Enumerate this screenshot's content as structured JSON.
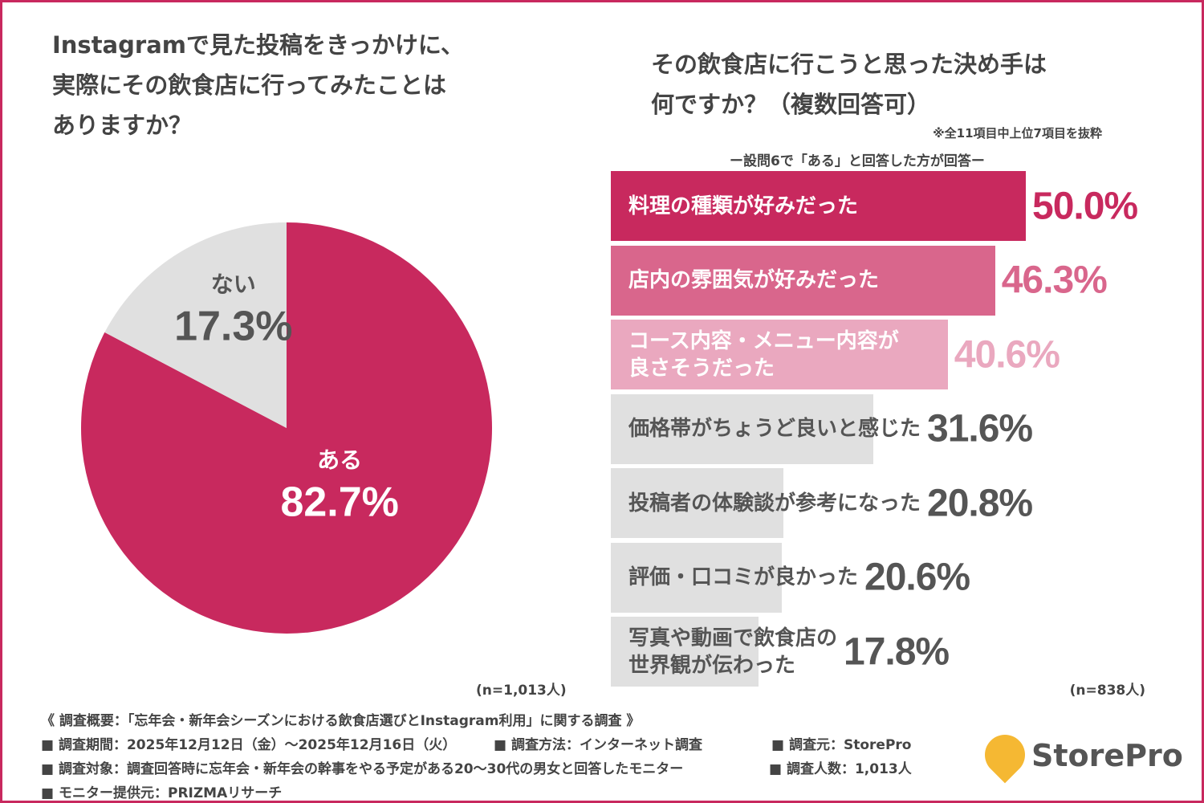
{
  "chart_data": [
    {
      "type": "pie",
      "title": "Instagramで見た投稿をきっかけに、\n実際にその飲食店に行ってみたことは\nありますか？",
      "categories": [
        "ある",
        "ない"
      ],
      "values": [
        82.7,
        17.3
      ],
      "value_labels": [
        "82.7%",
        "17.3%"
      ],
      "colors": [
        "#c8295e",
        "#e0e0e0"
      ],
      "label_colors": [
        "#ffffff",
        "#555555"
      ],
      "note": "(n=1,013人)"
    },
    {
      "type": "hbar",
      "title": "その飲食店に行こうと思った決め手は\n何ですか？（複数回答可）",
      "annotation": "※全11項目中上位7項目を抜粋",
      "subtitle": "ー設問6で「ある」と回答した方が回答ー",
      "categories": [
        "料理の種類が好みだった",
        "店内の雰囲気が好みだった",
        "コース内容・メニュー内容が\n良さそうだった",
        "価格帯がちょうど良いと感じた",
        "投稿者の体験談が参考になった",
        "評価・口コミが良かった",
        "写真や動画で飲食店の\n世界観が伝わった"
      ],
      "values": [
        50.0,
        46.3,
        40.6,
        31.6,
        20.8,
        20.6,
        17.8
      ],
      "value_labels": [
        "50.0%",
        "46.3%",
        "40.6%",
        "31.6%",
        "20.8%",
        "20.6%",
        "17.8%"
      ],
      "colors": [
        "#c8295e",
        "#d9668c",
        "#eaa8bf",
        "#e0e0e0",
        "#e0e0e0",
        "#e0e0e0",
        "#e0e0e0"
      ],
      "label_colors": [
        "#ffffff",
        "#ffffff",
        "#ffffff",
        "#555555",
        "#555555",
        "#555555",
        "#555555"
      ],
      "value_label_colors": [
        "#c8295e",
        "#d9668c",
        "#eaa8bf",
        "#555555",
        "#555555",
        "#555555",
        "#555555"
      ],
      "xlim": [
        0,
        100
      ],
      "note": "(n=838人)"
    }
  ],
  "footer": {
    "heading": "《 調査概要：「忘年会・新年会シーズンにおける飲食店選びとInstagram利用」に関する調査 》",
    "items": [
      "■ 調査期間：2025年12月12日（金）～2025年12月16日（火）",
      "■ 調査方法：インターネット調査",
      "■ 調査元：StorePro",
      "■ 調査対象：調査回答時に忘年会・新年会の幹事をやる予定がある20～30代の男女と回答したモニター",
      "■ 調査人数：1,013人",
      "■ モニター提供元：PRIZMAリサーチ"
    ],
    "logo": "StorePro"
  }
}
